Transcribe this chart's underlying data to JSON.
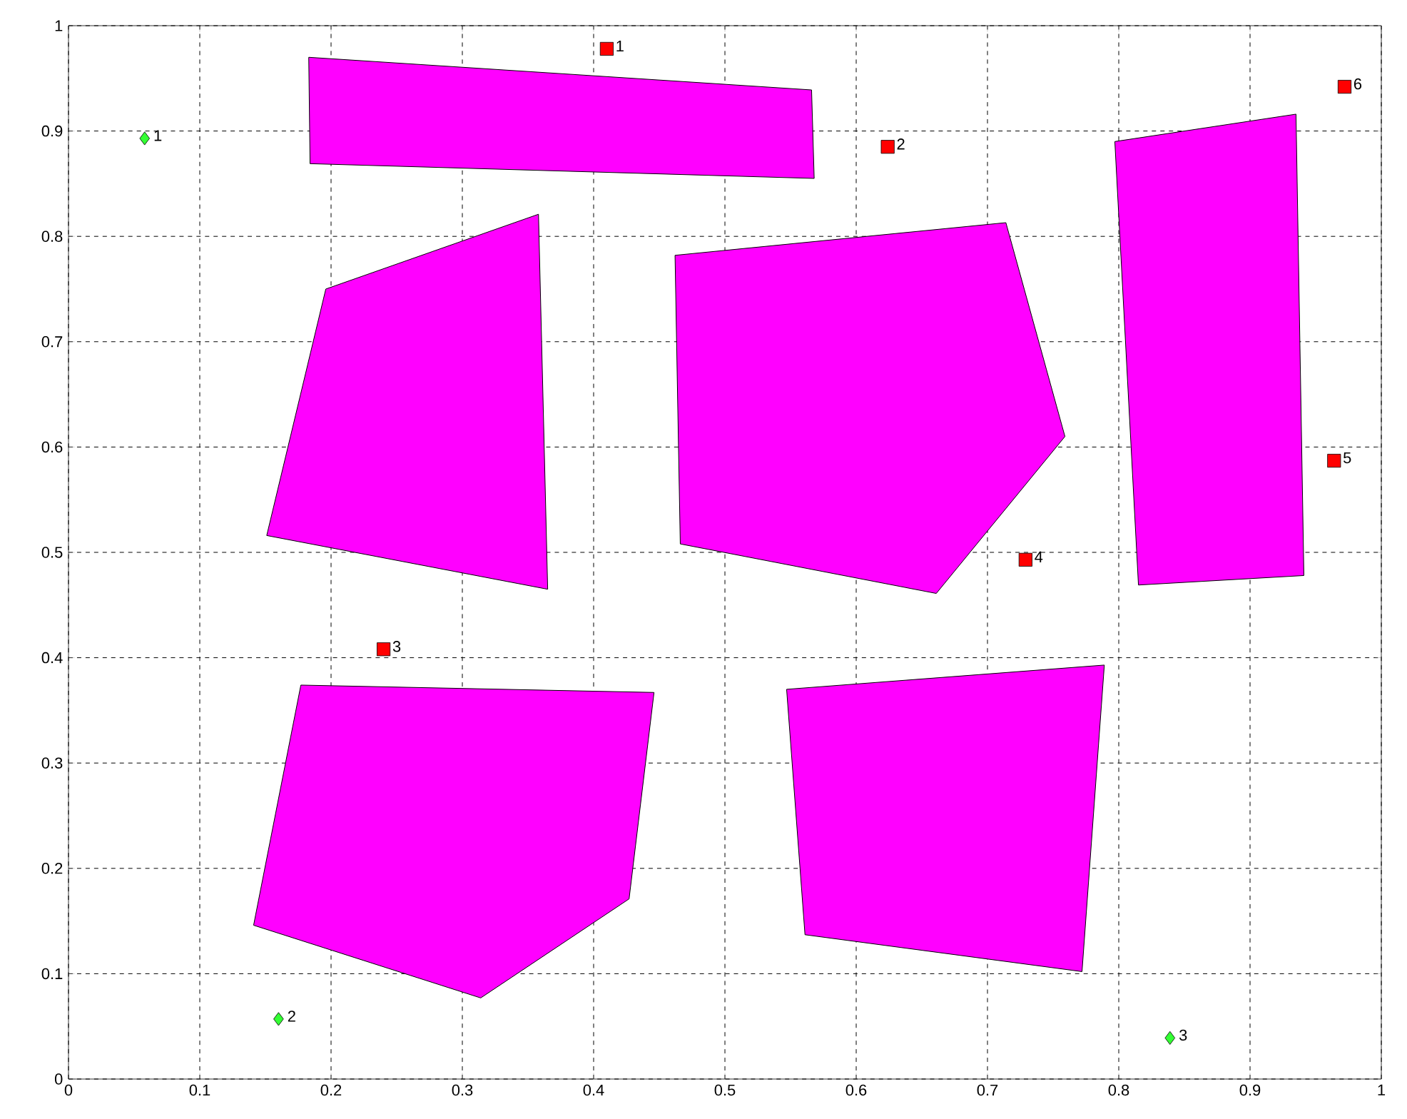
{
  "chart_data": {
    "type": "scatter",
    "xlim": [
      0,
      1
    ],
    "ylim": [
      0,
      1
    ],
    "xticks": [
      0,
      0.1,
      0.2,
      0.3,
      0.4,
      0.5,
      0.6,
      0.7,
      0.8,
      0.9,
      1
    ],
    "yticks": [
      0,
      0.1,
      0.2,
      0.3,
      0.4,
      0.5,
      0.6,
      0.7,
      0.8,
      0.9,
      1
    ],
    "grid": true,
    "series": [
      {
        "type": "area",
        "color": "#ff00ff",
        "x": [
          0.183,
          0.566,
          0.568,
          0.184
        ],
        "values": [
          0.97,
          0.939,
          0.855,
          0.869
        ]
      },
      {
        "type": "area",
        "color": "#ff00ff",
        "x": [
          0.196,
          0.358,
          0.365,
          0.151
        ],
        "values": [
          0.75,
          0.821,
          0.465,
          0.516
        ]
      },
      {
        "type": "area",
        "color": "#ff00ff",
        "x": [
          0.462,
          0.714,
          0.759,
          0.661,
          0.466
        ],
        "values": [
          0.782,
          0.813,
          0.61,
          0.461,
          0.508
        ]
      },
      {
        "type": "area",
        "color": "#ff00ff",
        "x": [
          0.797,
          0.935,
          0.941,
          0.815
        ],
        "values": [
          0.89,
          0.916,
          0.478,
          0.469
        ]
      },
      {
        "type": "area",
        "color": "#ff00ff",
        "x": [
          0.177,
          0.446,
          0.427,
          0.314,
          0.141
        ],
        "values": [
          0.374,
          0.367,
          0.171,
          0.077,
          0.146
        ]
      },
      {
        "type": "area",
        "color": "#ff00ff",
        "x": [
          0.547,
          0.789,
          0.772,
          0.561
        ],
        "values": [
          0.37,
          0.393,
          0.102,
          0.137
        ]
      },
      {
        "color": "#ff0000",
        "marker": "square",
        "x": [
          0.41,
          0.624,
          0.24,
          0.729,
          0.964,
          0.972
        ],
        "values": [
          0.978,
          0.885,
          0.408,
          0.493,
          0.587,
          0.942
        ]
      },
      {
        "color": "#33ff33",
        "marker": "diamond",
        "x": [
          0.058,
          0.16,
          0.839
        ],
        "values": [
          0.893,
          0.057,
          0.039
        ]
      }
    ],
    "annotations": [
      {
        "text": "1",
        "x": 0.41,
        "y": 0.978
      },
      {
        "text": "2",
        "x": 0.624,
        "y": 0.885
      },
      {
        "text": "3",
        "x": 0.24,
        "y": 0.408
      },
      {
        "text": "4",
        "x": 0.729,
        "y": 0.493
      },
      {
        "text": "5",
        "x": 0.964,
        "y": 0.587
      },
      {
        "text": "6",
        "x": 0.972,
        "y": 0.942
      },
      {
        "text": "1",
        "x": 0.058,
        "y": 0.893
      },
      {
        "text": "2",
        "x": 0.16,
        "y": 0.057
      },
      {
        "text": "3",
        "x": 0.839,
        "y": 0.039
      }
    ]
  }
}
